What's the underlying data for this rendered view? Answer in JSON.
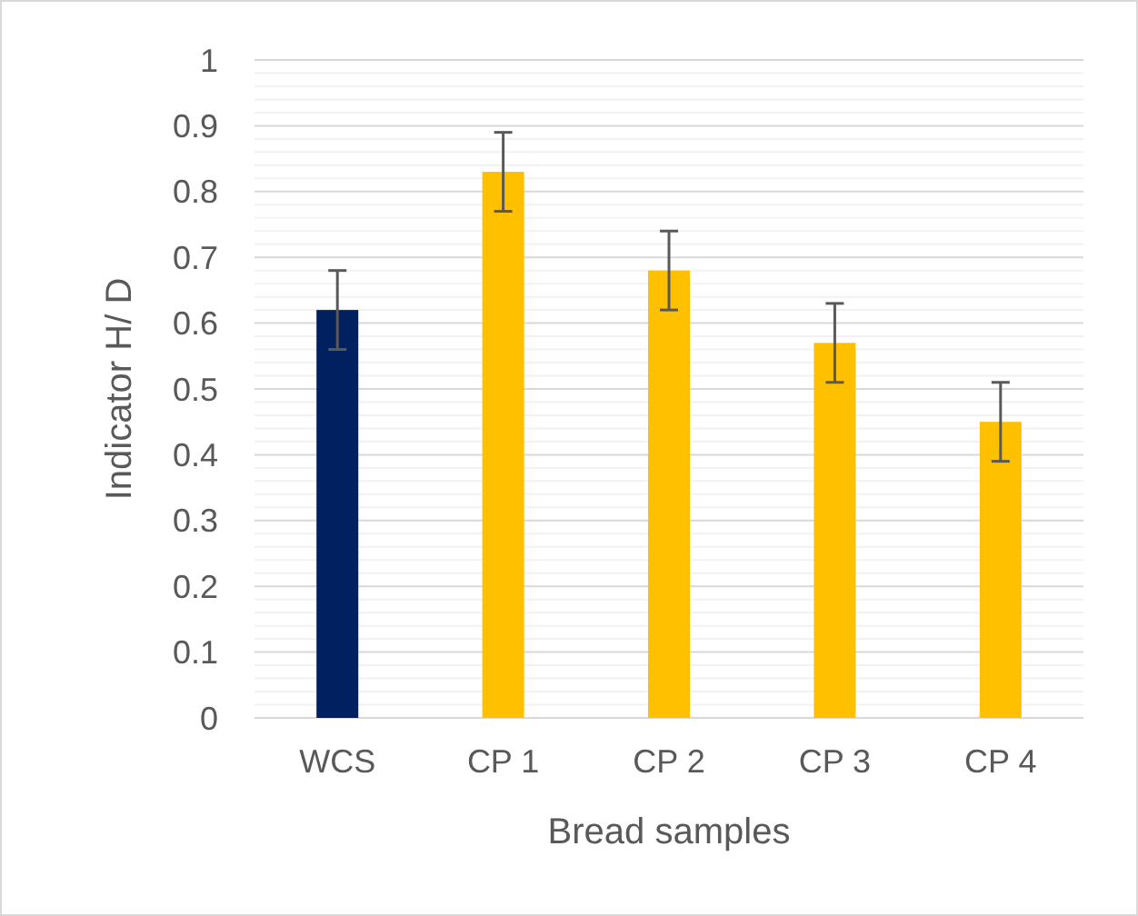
{
  "chart_data": {
    "type": "bar",
    "xlabel": "Bread samples",
    "ylabel": "Indicator H/ D",
    "categories": [
      "WCS",
      "CP 1",
      "CP 2",
      "CP 3",
      "CP 4"
    ],
    "values": [
      0.62,
      0.83,
      0.68,
      0.57,
      0.45
    ],
    "colors": [
      "#002060",
      "#ffc000",
      "#ffc000",
      "#ffc000",
      "#ffc000"
    ],
    "errors": [
      0.06,
      0.06,
      0.06,
      0.06,
      0.06
    ],
    "ylim": [
      0,
      1
    ],
    "yticks": [
      0,
      {
        "value": 0.02,
        "label": null
      },
      {
        "value": 0.04,
        "label": null
      },
      {
        "value": 0.06,
        "label": null
      },
      {
        "value": 0.08,
        "label": null
      },
      0.1,
      {
        "value": 0.12,
        "label": null
      },
      {
        "value": 0.14,
        "label": null
      },
      {
        "value": 0.16,
        "label": null
      },
      {
        "value": 0.18,
        "label": null
      },
      0.2,
      {
        "value": 0.22,
        "label": null
      },
      {
        "value": 0.24,
        "label": null
      },
      {
        "value": 0.26,
        "label": null
      },
      {
        "value": 0.28,
        "label": null
      },
      0.3,
      {
        "value": 0.32,
        "label": null
      },
      {
        "value": 0.34,
        "label": null
      },
      {
        "value": 0.36,
        "label": null
      },
      {
        "value": 0.38,
        "label": null
      },
      0.4,
      {
        "value": 0.42,
        "label": null
      },
      {
        "value": 0.44,
        "label": null
      },
      {
        "value": 0.46,
        "label": null
      },
      {
        "value": 0.48,
        "label": null
      },
      0.5,
      {
        "value": 0.52,
        "label": null
      },
      {
        "value": 0.54,
        "label": null
      },
      {
        "value": 0.56,
        "label": null
      },
      {
        "value": 0.58,
        "label": null
      },
      0.6,
      {
        "value": 0.62,
        "label": null
      },
      {
        "value": 0.64,
        "label": null
      },
      {
        "value": 0.66,
        "label": null
      },
      {
        "value": 0.68,
        "label": null
      },
      0.7,
      {
        "value": 0.72,
        "label": null
      },
      {
        "value": 0.74,
        "label": null
      },
      {
        "value": 0.76,
        "label": null
      },
      {
        "value": 0.78,
        "label": null
      },
      0.8,
      {
        "value": 0.82,
        "label": null
      },
      {
        "value": 0.84,
        "label": null
      },
      {
        "value": 0.86,
        "label": null
      },
      {
        "value": 0.88,
        "label": null
      },
      0.9,
      {
        "value": 0.92,
        "label": null
      },
      {
        "value": 0.94,
        "label": null
      },
      {
        "value": 0.96,
        "label": null
      },
      {
        "value": 0.98,
        "label": null
      },
      1
    ],
    "grid": "y"
  }
}
